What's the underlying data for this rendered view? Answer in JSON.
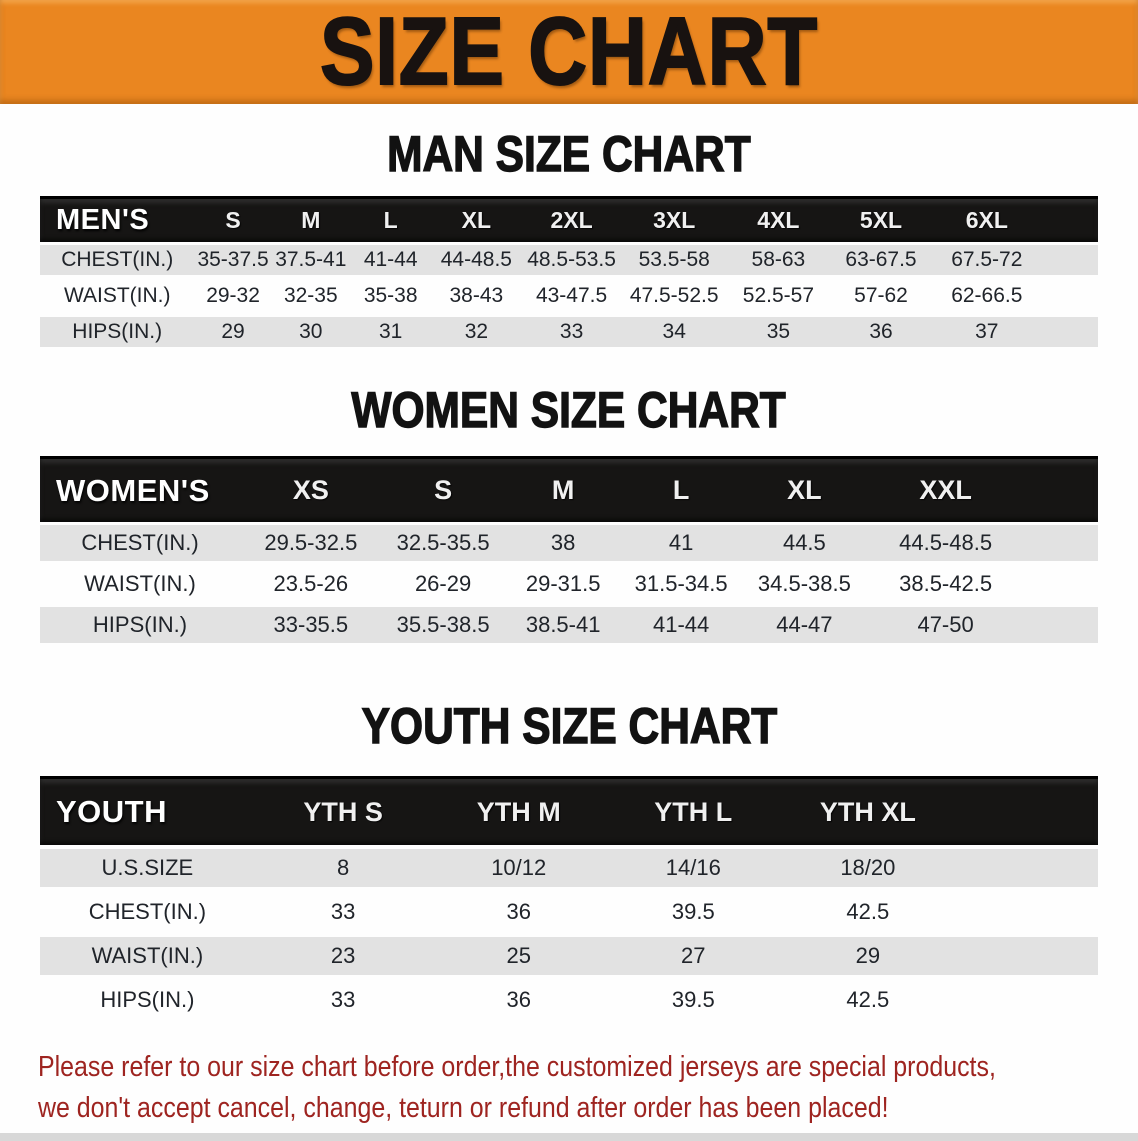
{
  "banner": {
    "title": "SIZE CHART",
    "bg_color": "#EA8620"
  },
  "men": {
    "title": "MAN SIZE CHART",
    "table": {
      "header_label": "MEN'S",
      "sizes": [
        "S",
        "M",
        "L",
        "XL",
        "2XL",
        "3XL",
        "4XL",
        "5XL",
        "6XL"
      ],
      "rows": [
        {
          "label": "CHEST(IN.)",
          "values": [
            "35-37.5",
            "37.5-41",
            "41-44",
            "44-48.5",
            "48.5-53.5",
            "53.5-58",
            "58-63",
            "63-67.5",
            "67.5-72"
          ]
        },
        {
          "label": "WAIST(IN.)",
          "values": [
            "29-32",
            "32-35",
            "35-38",
            "38-43",
            "43-47.5",
            "47.5-52.5",
            "52.5-57",
            "57-62",
            "62-66.5"
          ]
        },
        {
          "label": "HIPS(IN.)",
          "values": [
            "29",
            "30",
            "31",
            "32",
            "33",
            "34",
            "35",
            "36",
            "37"
          ]
        }
      ]
    }
  },
  "women": {
    "title": "WOMEN SIZE CHART",
    "table": {
      "header_label": "WOMEN'S",
      "sizes": [
        "XS",
        "S",
        "M",
        "L",
        "XL",
        "XXL"
      ],
      "rows": [
        {
          "label": "CHEST(IN.)",
          "values": [
            "29.5-32.5",
            "32.5-35.5",
            "38",
            "41",
            "44.5",
            "44.5-48.5"
          ]
        },
        {
          "label": "WAIST(IN.)",
          "values": [
            "23.5-26",
            "26-29",
            "29-31.5",
            "31.5-34.5",
            "34.5-38.5",
            "38.5-42.5"
          ]
        },
        {
          "label": "HIPS(IN.)",
          "values": [
            "33-35.5",
            "35.5-38.5",
            "38.5-41",
            "41-44",
            "44-47",
            "47-50"
          ]
        }
      ]
    }
  },
  "youth": {
    "title": "YOUTH SIZE CHART",
    "table": {
      "header_label": "YOUTH",
      "sizes": [
        "YTH S",
        "YTH M",
        "YTH L",
        "YTH XL"
      ],
      "rows": [
        {
          "label": "U.S.SIZE",
          "values": [
            "8",
            "10/12",
            "14/16",
            "18/20"
          ]
        },
        {
          "label": "CHEST(IN.)",
          "values": [
            "33",
            "36",
            "39.5",
            "42.5"
          ]
        },
        {
          "label": "WAIST(IN.)",
          "values": [
            "23",
            "25",
            "27",
            "29"
          ]
        },
        {
          "label": "HIPS(IN.)",
          "values": [
            "33",
            "36",
            "39.5",
            "42.5"
          ]
        }
      ]
    }
  },
  "notice": {
    "line1": "Please refer to our size chart before order,the customized jerseys are special products,",
    "line2": "we don't accept cancel, change, teturn or refund after order has been placed!",
    "color": "#9e2420"
  },
  "colors": {
    "banner_orange": "#EA8620",
    "table_header_black": "#161514",
    "row_shade_gray": "#e2e2e2",
    "bottom_strip_gray": "#d8d8d8"
  }
}
